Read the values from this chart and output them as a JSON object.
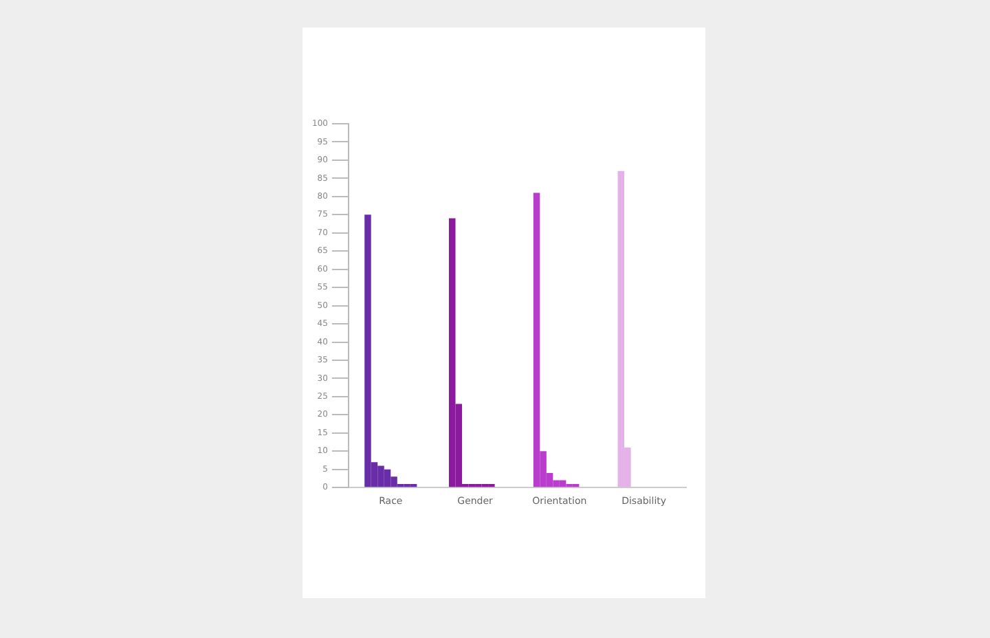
{
  "chart_data": {
    "type": "bar",
    "categories": [
      "Race",
      "Gender",
      "Orientation",
      "Disability"
    ],
    "series": [
      {
        "colors": [
          "#6a2da8",
          "#8c1a9e",
          "#b93ccc",
          "#e4b2e8"
        ],
        "values": [
          75,
          74,
          81,
          87
        ]
      },
      {
        "colors": [
          "#6a2da8",
          "#8c1a9e",
          "#b93ccc",
          "#e4b2e8"
        ],
        "values": [
          7,
          23,
          10,
          11
        ]
      },
      {
        "colors": [
          "#6a2da8",
          "#8c1a9e",
          "#b93ccc",
          "#e4b2e8"
        ],
        "values": [
          6,
          1,
          4,
          null
        ]
      },
      {
        "colors": [
          "#6a2da8",
          "#8c1a9e",
          "#b93ccc",
          "#e4b2e8"
        ],
        "values": [
          5,
          1,
          2,
          null
        ]
      },
      {
        "colors": [
          "#6a2da8",
          "#8c1a9e",
          "#b93ccc",
          "#e4b2e8"
        ],
        "values": [
          3,
          1,
          2,
          null
        ]
      },
      {
        "colors": [
          "#6a2da8",
          "#8c1a9e",
          "#b93ccc",
          "#e4b2e8"
        ],
        "values": [
          1,
          1,
          1,
          null
        ]
      },
      {
        "colors": [
          "#6a2da8",
          "#8c1a9e",
          "#b93ccc",
          "#e4b2e8"
        ],
        "values": [
          1,
          1,
          1,
          null
        ]
      },
      {
        "colors": [
          "#6a2da8",
          null,
          null,
          null
        ],
        "values": [
          1,
          null,
          null,
          null
        ]
      }
    ],
    "ylim": [
      0,
      100
    ],
    "yticks": [
      0,
      5,
      10,
      15,
      20,
      25,
      30,
      35,
      40,
      45,
      50,
      55,
      60,
      65,
      70,
      75,
      80,
      85,
      90,
      95,
      100
    ],
    "grid": false,
    "legend": false
  }
}
